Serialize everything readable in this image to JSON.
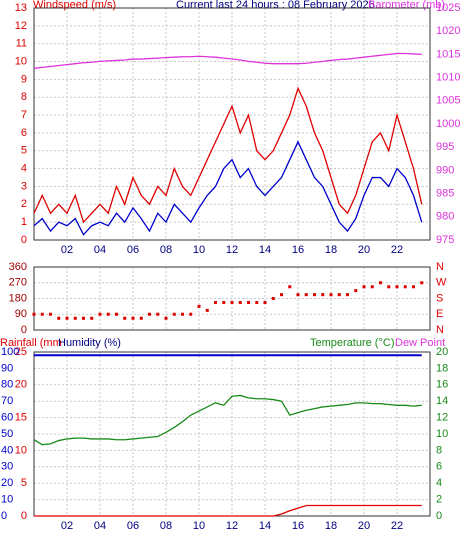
{
  "chart_data": [
    {
      "type": "line",
      "title": "Current last 24 hours : 08 February 2026",
      "y_label": "Windspeed (m/s)",
      "y2_label": "Barometer (mb)",
      "x": [
        0,
        0.5,
        1,
        1.5,
        2,
        2.5,
        3,
        3.5,
        4,
        4.5,
        5,
        5.5,
        6,
        6.5,
        7,
        7.5,
        8,
        8.5,
        9,
        9.5,
        10,
        10.5,
        11,
        11.5,
        12,
        12.5,
        13,
        13.5,
        14,
        14.5,
        15,
        15.5,
        16,
        16.5,
        17,
        17.5,
        18,
        18.5,
        19,
        19.5,
        20,
        20.5,
        21,
        21.5,
        22,
        22.5,
        23,
        23.5
      ],
      "xlim": [
        0,
        24
      ],
      "xticks": [
        {
          "value": 2,
          "label": "02"
        },
        {
          "value": 4,
          "label": "04"
        },
        {
          "value": 6,
          "label": "06"
        },
        {
          "value": 8,
          "label": "08"
        },
        {
          "value": 10,
          "label": "10"
        },
        {
          "value": 12,
          "label": "12"
        },
        {
          "value": 14,
          "label": "14"
        },
        {
          "value": 16,
          "label": "16"
        },
        {
          "value": 18,
          "label": "18"
        },
        {
          "value": 20,
          "label": "20"
        },
        {
          "value": 22,
          "label": "22"
        }
      ],
      "ylim": [
        0,
        13
      ],
      "yticks": [
        0,
        1,
        2,
        3,
        4,
        5,
        6,
        7,
        8,
        9,
        10,
        11,
        12,
        13
      ],
      "y2lim": [
        975,
        1025
      ],
      "y2ticks": [
        975,
        980,
        985,
        990,
        995,
        1000,
        1005,
        1010,
        1015,
        1020,
        1025
      ],
      "grid": true,
      "series": [
        {
          "color": "#e00000",
          "values": [
            1.5,
            2.5,
            1.5,
            2,
            1.5,
            2.5,
            1,
            1.5,
            2,
            1.5,
            3,
            2,
            3.5,
            2.5,
            2,
            3,
            2.5,
            4,
            3,
            2.5,
            3.5,
            4.5,
            5.5,
            6.5,
            7.5,
            6,
            7,
            5,
            4.5,
            5,
            6,
            7,
            8.5,
            7.5,
            6,
            5,
            3.5,
            2,
            1.5,
            2.5,
            4,
            5.5,
            6,
            5,
            7,
            5.5,
            4,
            2
          ]
        },
        {
          "color": "#0000cc",
          "values": [
            0.8,
            1.2,
            0.5,
            1,
            0.8,
            1.2,
            0.3,
            0.8,
            1,
            0.8,
            1.5,
            1,
            1.8,
            1.2,
            0.5,
            1.5,
            1,
            2,
            1.5,
            1,
            1.8,
            2.5,
            3,
            4,
            4.5,
            3.5,
            4,
            3,
            2.5,
            3,
            3.5,
            4.5,
            5.5,
            4.5,
            3.5,
            3,
            2,
            1,
            0.5,
            1.2,
            2.5,
            3.5,
            3.5,
            3,
            4,
            3.5,
            2.5,
            1
          ]
        },
        {
          "color": "#dd33dd",
          "axis": "y2",
          "values": [
            1012,
            1012.2,
            1012.4,
            1012.6,
            1012.8,
            1013,
            1013.2,
            1013.3,
            1013.5,
            1013.6,
            1013.7,
            1013.8,
            1014,
            1014,
            1014.1,
            1014.2,
            1014.3,
            1014.4,
            1014.5,
            1014.5,
            1014.6,
            1014.5,
            1014.4,
            1014.2,
            1014,
            1013.8,
            1013.5,
            1013.3,
            1013.1,
            1013,
            1013,
            1013,
            1013,
            1013.1,
            1013.3,
            1013.5,
            1013.7,
            1013.9,
            1014,
            1014.2,
            1014.4,
            1014.6,
            1014.8,
            1015,
            1015.2,
            1015.2,
            1015.1,
            1015
          ]
        }
      ]
    },
    {
      "type": "scatter",
      "x": [
        0,
        0.5,
        1,
        1.5,
        2,
        2.5,
        3,
        3.5,
        4,
        4.5,
        5,
        5.5,
        6,
        6.5,
        7,
        7.5,
        8,
        8.5,
        9,
        9.5,
        10,
        10.5,
        11,
        11.5,
        12,
        12.5,
        13,
        13.5,
        14,
        14.5,
        15,
        15.5,
        16,
        16.5,
        17,
        17.5,
        18,
        18.5,
        19,
        19.5,
        20,
        20.5,
        21,
        21.5,
        22,
        22.5,
        23,
        23.5
      ],
      "xlim": [
        0,
        24
      ],
      "xticks": [
        {
          "value": 2,
          "label": "02"
        },
        {
          "value": 4,
          "label": "04"
        },
        {
          "value": 6,
          "label": "06"
        },
        {
          "value": 8,
          "label": "08"
        },
        {
          "value": 10,
          "label": "10"
        },
        {
          "value": 12,
          "label": "12"
        },
        {
          "value": 14,
          "label": "14"
        },
        {
          "value": 16,
          "label": "16"
        },
        {
          "value": 18,
          "label": "18"
        },
        {
          "value": 20,
          "label": "20"
        },
        {
          "value": 22,
          "label": "22"
        }
      ],
      "ylim": [
        0,
        360
      ],
      "yticks": [
        0,
        90,
        180,
        270,
        360
      ],
      "compass": [
        "N",
        "E",
        "S",
        "W",
        "N"
      ],
      "grid": true,
      "color": "#e00000",
      "values": [
        90,
        90,
        90,
        67,
        67,
        67,
        67,
        67,
        90,
        90,
        90,
        67,
        67,
        67,
        90,
        90,
        67,
        90,
        90,
        90,
        135,
        112,
        157,
        157,
        157,
        157,
        157,
        157,
        157,
        180,
        202,
        247,
        202,
        202,
        202,
        202,
        202,
        202,
        202,
        225,
        247,
        247,
        270,
        247,
        247,
        247,
        247,
        270
      ]
    },
    {
      "type": "line",
      "y_label": "Rainfall (mm",
      "y3_label": "Humidity (%)",
      "y2_label": "Temperature (°C)",
      "dew_label": "Dew Point",
      "x": [
        0,
        0.5,
        1,
        1.5,
        2,
        2.5,
        3,
        3.5,
        4,
        4.5,
        5,
        5.5,
        6,
        6.5,
        7,
        7.5,
        8,
        8.5,
        9,
        9.5,
        10,
        10.5,
        11,
        11.5,
        12,
        12.5,
        13,
        13.5,
        14,
        14.5,
        15,
        15.5,
        16,
        16.5,
        17,
        17.5,
        18,
        18.5,
        19,
        19.5,
        20,
        20.5,
        21,
        21.5,
        22,
        22.5,
        23,
        23.5
      ],
      "xlim": [
        0,
        24
      ],
      "xticks": [
        {
          "value": 2,
          "label": "02"
        },
        {
          "value": 4,
          "label": "04"
        },
        {
          "value": 6,
          "label": "06"
        },
        {
          "value": 8,
          "label": "08"
        },
        {
          "value": 10,
          "label": "10"
        },
        {
          "value": 12,
          "label": "12"
        },
        {
          "value": 14,
          "label": "14"
        },
        {
          "value": 16,
          "label": "16"
        },
        {
          "value": 18,
          "label": "18"
        },
        {
          "value": 20,
          "label": "20"
        },
        {
          "value": 22,
          "label": "22"
        }
      ],
      "ylim": [
        0,
        25
      ],
      "yticks": [
        0,
        5,
        10,
        15,
        20,
        25
      ],
      "y3lim": [
        0,
        100
      ],
      "y3ticks": [
        0,
        10,
        20,
        30,
        40,
        50,
        60,
        70,
        80,
        90,
        100
      ],
      "y2lim": [
        0,
        20
      ],
      "y2ticks": [
        0,
        2,
        4,
        6,
        8,
        10,
        12,
        14,
        16,
        18,
        20
      ],
      "grid": true,
      "series": [
        {
          "color": "#0000cc",
          "axis": "y3",
          "values": [
            98,
            98,
            98,
            98,
            98,
            98,
            98,
            98,
            98,
            98,
            98,
            98,
            98,
            98,
            98,
            98,
            98,
            98,
            98,
            98,
            98,
            98,
            98,
            98,
            98,
            98,
            98,
            98,
            98,
            98,
            98,
            98,
            98,
            98,
            98,
            98,
            98,
            98,
            98,
            98,
            98,
            98,
            98,
            98,
            98,
            98,
            98,
            98
          ]
        },
        {
          "color": "#e00000",
          "values": [
            0,
            0,
            0,
            0,
            0,
            0,
            0,
            0,
            0,
            0,
            0,
            0,
            0,
            0,
            0,
            0,
            0,
            0,
            0,
            0,
            0,
            0,
            0,
            0,
            0,
            0,
            0,
            0,
            0,
            0,
            0.3,
            0.8,
            1.2,
            1.6,
            1.6,
            1.6,
            1.6,
            1.6,
            1.6,
            1.6,
            1.6,
            1.6,
            1.6,
            1.6,
            1.6,
            1.6,
            1.6,
            1.6
          ]
        },
        {
          "color": "#1a8a1a",
          "axis": "y2",
          "values": [
            9.3,
            8.7,
            8.8,
            9.2,
            9.4,
            9.5,
            9.5,
            9.4,
            9.4,
            9.4,
            9.3,
            9.3,
            9.4,
            9.5,
            9.6,
            9.7,
            10.2,
            10.8,
            11.5,
            12.3,
            12.8,
            13.3,
            13.8,
            13.5,
            14.6,
            14.7,
            14.4,
            14.3,
            14.3,
            14.2,
            14.0,
            12.3,
            12.6,
            12.9,
            13.1,
            13.3,
            13.4,
            13.5,
            13.6,
            13.8,
            13.8,
            13.7,
            13.7,
            13.6,
            13.5,
            13.5,
            13.4,
            13.5
          ]
        }
      ]
    }
  ]
}
